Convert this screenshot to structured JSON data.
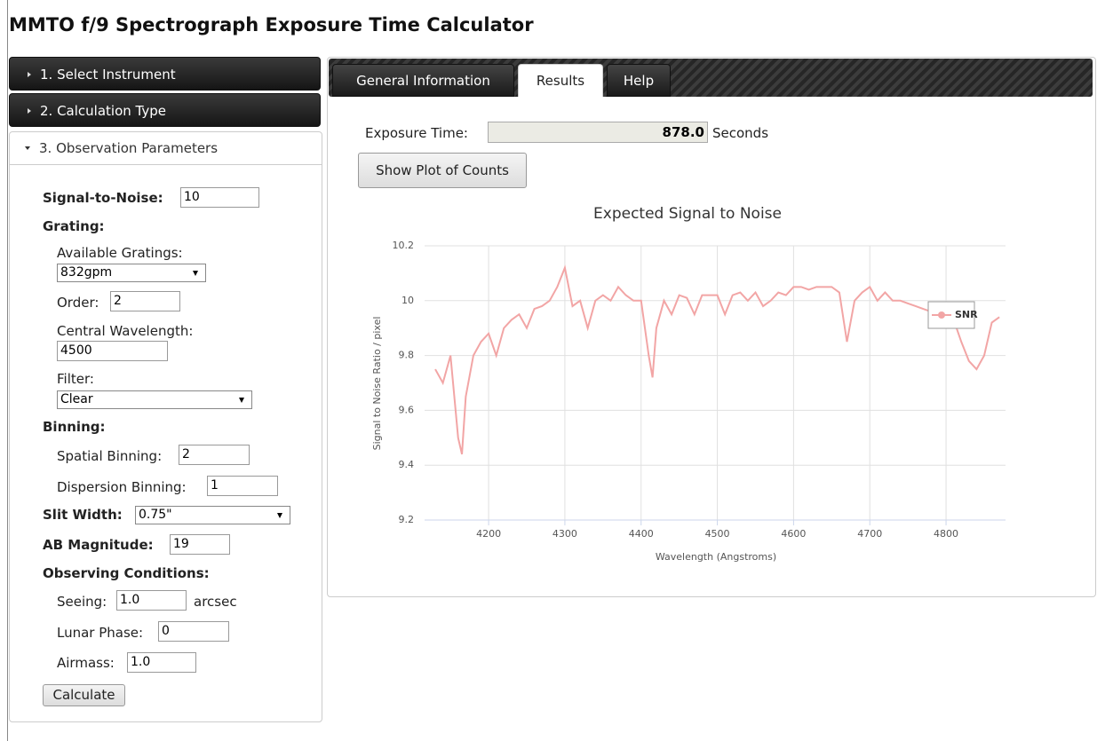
{
  "header": {
    "title": "MMTO f/9 Spectrograph Exposure Time Calculator"
  },
  "sidebar": {
    "sections": [
      "1. Select Instrument",
      "2. Calculation Type",
      "3. Observation Parameters"
    ],
    "form": {
      "signal_to_noise": {
        "label": "Signal-to-Noise:",
        "value": "10"
      },
      "grating_heading": "Grating:",
      "available_gratings": {
        "label": "Available Gratings:",
        "value": "832gpm"
      },
      "order": {
        "label": "Order:",
        "value": "2"
      },
      "central_wavelength": {
        "label": "Central Wavelength:",
        "value": "4500"
      },
      "filter": {
        "label": "Filter:",
        "value": "Clear"
      },
      "binning_heading": "Binning:",
      "spatial_binning": {
        "label": "Spatial Binning:",
        "value": "2"
      },
      "dispersion_binning": {
        "label": "Dispersion Binning:",
        "value": "1"
      },
      "slit_width": {
        "label": "Slit Width:",
        "value": "0.75\""
      },
      "ab_magnitude": {
        "label": "AB Magnitude:",
        "value": "19"
      },
      "conditions_heading": "Observing Conditions:",
      "seeing": {
        "label": "Seeing:",
        "value": "1.0",
        "unit": "arcsec"
      },
      "lunar_phase": {
        "label": "Lunar Phase:",
        "value": "0"
      },
      "airmass": {
        "label": "Airmass:",
        "value": "1.0"
      },
      "calculate_button": "Calculate"
    }
  },
  "results": {
    "tabs": [
      "General Information",
      "Results",
      "Help"
    ],
    "exposure_label": "Exposure Time:",
    "exposure_value": "878.0",
    "exposure_unit": "Seconds",
    "plot_button": "Show Plot of Counts"
  },
  "chart_data": {
    "type": "line",
    "title": "Expected Signal to Noise",
    "x_label": "Wavelength (Angstroms)",
    "y_label": "Signal to Noise Ratio / pixel",
    "x": [
      4130,
      4140,
      4150,
      4160,
      4165,
      4170,
      4180,
      4190,
      4200,
      4210,
      4220,
      4230,
      4240,
      4250,
      4260,
      4270,
      4280,
      4290,
      4300,
      4310,
      4320,
      4330,
      4340,
      4350,
      4360,
      4370,
      4380,
      4390,
      4400,
      4410,
      4415,
      4420,
      4430,
      4440,
      4450,
      4460,
      4470,
      4480,
      4490,
      4500,
      4510,
      4520,
      4530,
      4540,
      4550,
      4560,
      4570,
      4580,
      4590,
      4600,
      4610,
      4620,
      4630,
      4640,
      4650,
      4660,
      4670,
      4680,
      4690,
      4700,
      4710,
      4720,
      4730,
      4740,
      4750,
      4760,
      4770,
      4780,
      4790,
      4800,
      4810,
      4820,
      4830,
      4840,
      4850,
      4860,
      4870
    ],
    "series": [
      {
        "name": "SNR",
        "color": "#f2a5a5",
        "values": [
          9.75,
          9.7,
          9.8,
          9.5,
          9.44,
          9.65,
          9.8,
          9.85,
          9.88,
          9.8,
          9.9,
          9.93,
          9.95,
          9.9,
          9.97,
          9.98,
          10.0,
          10.05,
          10.12,
          9.98,
          10.0,
          9.9,
          10.0,
          10.02,
          10.0,
          10.05,
          10.02,
          10.0,
          10.0,
          9.8,
          9.72,
          9.9,
          10.0,
          9.95,
          10.02,
          10.01,
          9.95,
          10.02,
          10.02,
          10.02,
          9.95,
          10.02,
          10.03,
          10.0,
          10.03,
          9.98,
          10.0,
          10.03,
          10.02,
          10.05,
          10.05,
          10.04,
          10.05,
          10.05,
          10.05,
          10.03,
          9.85,
          10.0,
          10.03,
          10.05,
          10.0,
          10.03,
          10.0,
          10.0,
          9.99,
          9.98,
          9.97,
          9.96,
          9.96,
          9.95,
          9.93,
          9.85,
          9.78,
          9.75,
          9.8,
          9.92,
          9.94
        ]
      }
    ],
    "xlim": [
      4116,
      4878
    ],
    "ylim": [
      9.2,
      10.2
    ],
    "xticks": [
      4200,
      4300,
      4400,
      4500,
      4600,
      4700,
      4800
    ],
    "yticks": [
      9.2,
      9.4,
      9.6,
      9.8,
      10,
      10.2
    ],
    "grid": true,
    "legend": "right"
  }
}
